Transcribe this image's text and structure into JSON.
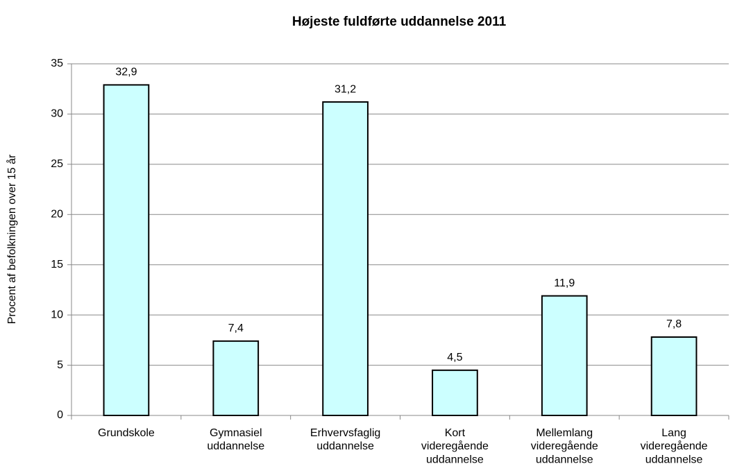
{
  "chart_data": {
    "type": "bar",
    "title": "Højeste fuldførte uddannelse 2011",
    "y_label": "Procent af befolkningen over 15 år",
    "categories": [
      "Grundskole",
      "Gymnasiel\nuddannelse",
      "Erhvervsfaglig\nuddannelse",
      "Kort\nvideregående\nuddannelse",
      "Mellemlang\nvideregående\nuddannelse",
      "Lang\nvideregående\nuddannelse"
    ],
    "values": [
      32.9,
      7.4,
      31.2,
      4.5,
      11.9,
      7.8
    ],
    "value_labels": [
      "32,9",
      "7,4",
      "31,2",
      "4,5",
      "11,9",
      "7,8"
    ],
    "color": "#ccffff",
    "ylim": [
      0,
      35
    ],
    "yticks": [
      0,
      5,
      10,
      15,
      20,
      25,
      30,
      35
    ],
    "grid": true
  }
}
